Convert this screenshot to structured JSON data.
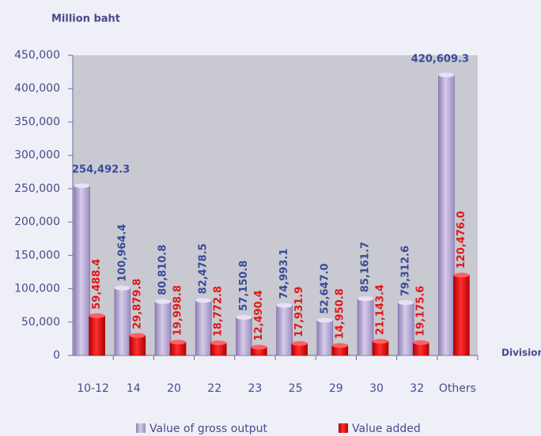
{
  "chart_data": {
    "type": "bar",
    "y_label": "Million baht",
    "x_label": "Division",
    "categories": [
      "10-12",
      "14",
      "20",
      "22",
      "23",
      "25",
      "29",
      "30",
      "32",
      "Others"
    ],
    "series": [
      {
        "name": "Value of gross output",
        "color": "#b4a6d2",
        "values": [
          254492.3,
          100964.4,
          80810.8,
          82478.5,
          57150.8,
          74993.1,
          52647.0,
          85161.7,
          79312.6,
          420609.3
        ],
        "value_labels": [
          "254,492.3",
          "100,964.4",
          "80,810.8",
          "82,478.5",
          "57,150.8",
          "74,993.1",
          "52,647.0",
          "85,161.7",
          "79,312.6",
          "420,609.3"
        ]
      },
      {
        "name": "Value added",
        "color": "#e01010",
        "values": [
          59488.4,
          29879.8,
          19998.8,
          18772.8,
          12490.4,
          17931.9,
          14950.8,
          21143.4,
          19175.6,
          120476.0
        ],
        "value_labels": [
          "59,488.4",
          "29,879.8",
          "19,998.8",
          "18,772.8",
          "12,490.4",
          "17,931.9",
          "14,950.8",
          "21,143.4",
          "19,175.6",
          "120,476.0"
        ]
      }
    ],
    "ylim": [
      0,
      450000
    ],
    "yticks": [
      0,
      {
        "value": 50000,
        "label": "50,000"
      },
      {
        "value": 100000,
        "label": "100,000"
      },
      {
        "value": 150000,
        "label": "150,000"
      },
      {
        "value": 200000,
        "label": "200,000"
      },
      {
        "value": 250000,
        "label": "250,000"
      },
      {
        "value": 300000,
        "label": "300,000"
      },
      {
        "value": 350000,
        "label": "350,000"
      },
      {
        "value": 400000,
        "label": "400,000"
      },
      {
        "value": 450000,
        "label": "450,000"
      }
    ]
  }
}
